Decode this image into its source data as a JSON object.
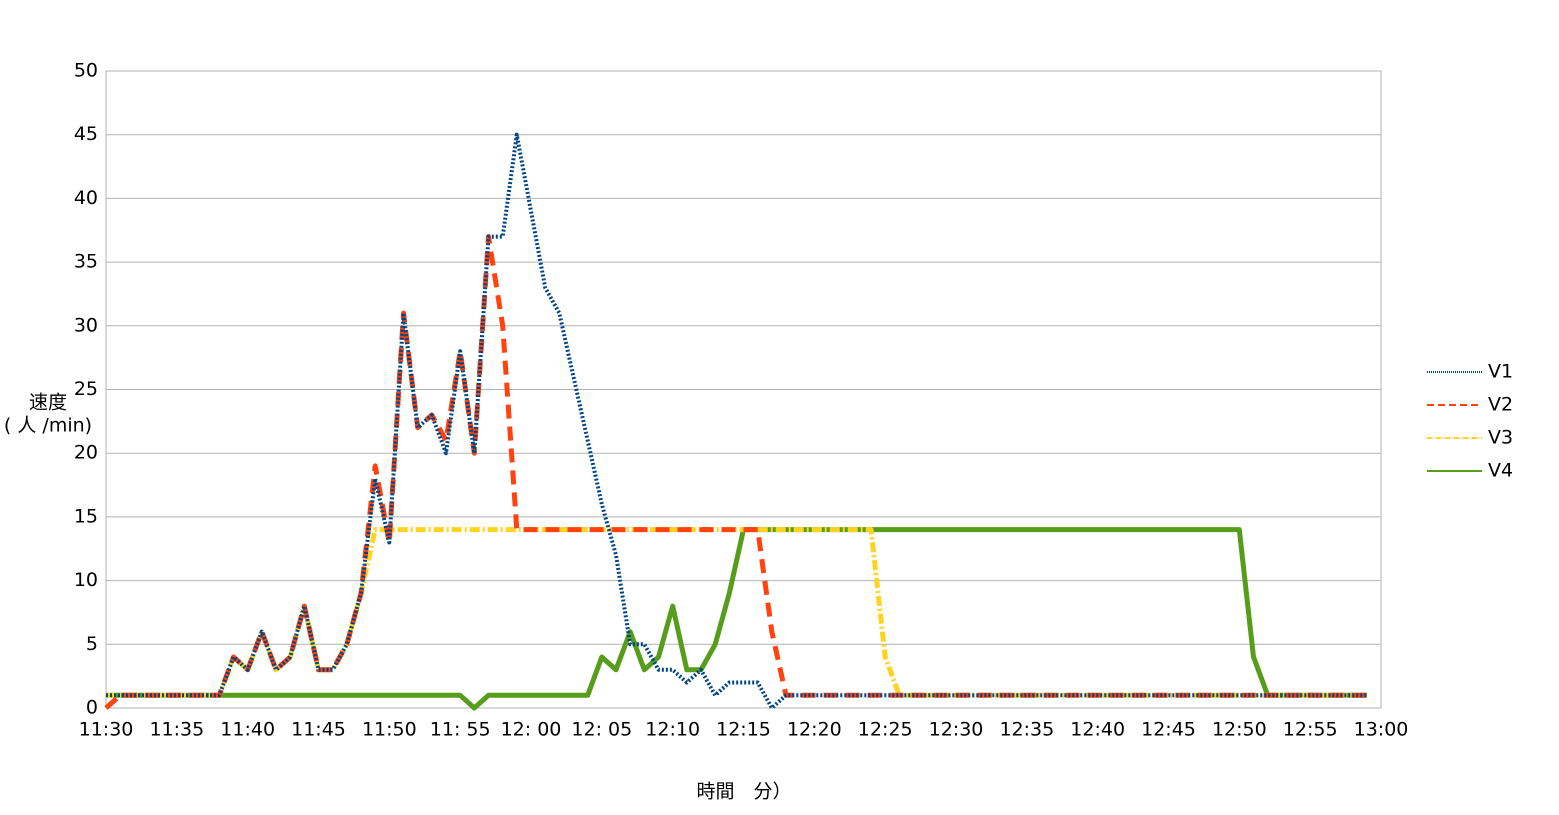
{
  "chart_data": {
    "type": "line",
    "ylabel": [
      "速度",
      "( 人 /min)"
    ],
    "xlabel": "時間　分）",
    "categories": [
      "11:30",
      null,
      null,
      null,
      null,
      "11:35",
      null,
      null,
      null,
      null,
      "11:40",
      null,
      null,
      null,
      null,
      "11:45",
      null,
      null,
      null,
      null,
      "11:50",
      null,
      null,
      null,
      null,
      "11: 55",
      null,
      null,
      null,
      null,
      "12: 00",
      null,
      null,
      null,
      null,
      "12: 05",
      null,
      null,
      null,
      null,
      "12:10",
      null,
      null,
      null,
      null,
      "12:15",
      null,
      null,
      null,
      null,
      "12:20",
      null,
      null,
      null,
      null,
      "12:25",
      null,
      null,
      null,
      null,
      "12:30",
      null,
      null,
      null,
      null,
      "12:35",
      null,
      null,
      null,
      null,
      "12:40",
      null,
      null,
      null,
      null,
      "12:45",
      null,
      null,
      null,
      null,
      "12:50",
      null,
      null,
      null,
      null,
      "12:55",
      null,
      null,
      null,
      null,
      "13:00"
    ],
    "series": [
      {
        "name": "V1",
        "color": "#004586",
        "dash": "2,2",
        "width": 4,
        "values": [
          1,
          1,
          1,
          1,
          1,
          1,
          1,
          1,
          1,
          4,
          3,
          6,
          3,
          4,
          8,
          3,
          3,
          5,
          9,
          18,
          13,
          31,
          22,
          23,
          20,
          28,
          20,
          37,
          37,
          45,
          39,
          33,
          31,
          26,
          21,
          16,
          12,
          5,
          5,
          3,
          3,
          2,
          3,
          1,
          2,
          2,
          2,
          0,
          1,
          1,
          1,
          1,
          1,
          1,
          1,
          1,
          1,
          1,
          1,
          1,
          1,
          1,
          1,
          1,
          1,
          1,
          1,
          1,
          1,
          1,
          1,
          1,
          1,
          1,
          1,
          1,
          1,
          1,
          1,
          1,
          1,
          1,
          1,
          1,
          1,
          1,
          1,
          1,
          1,
          1,
          null
        ]
      },
      {
        "name": "V2",
        "color": "#ff420e",
        "dash": "14,8",
        "width": 5,
        "values": [
          0,
          1,
          1,
          1,
          1,
          1,
          1,
          1,
          1,
          4,
          3,
          6,
          3,
          4,
          8,
          3,
          3,
          5,
          9,
          19,
          13,
          31,
          22,
          23,
          21,
          28,
          20,
          37,
          30,
          14,
          14,
          14,
          14,
          14,
          14,
          14,
          14,
          14,
          14,
          14,
          14,
          14,
          14,
          14,
          14,
          14,
          14,
          6,
          1,
          1,
          1,
          1,
          1,
          1,
          1,
          1,
          1,
          1,
          1,
          1,
          1,
          1,
          1,
          1,
          1,
          1,
          1,
          1,
          1,
          1,
          1,
          1,
          1,
          1,
          1,
          1,
          1,
          1,
          1,
          1,
          1,
          1,
          1,
          1,
          1,
          1,
          1,
          1,
          1,
          1,
          null
        ]
      },
      {
        "name": "V3",
        "color": "#ffd320",
        "dash": "10,3,2,3",
        "width": 5,
        "values": [
          1,
          1,
          1,
          1,
          1,
          1,
          1,
          1,
          1,
          4,
          3,
          6,
          3,
          4,
          8,
          3,
          3,
          5,
          9,
          14,
          14,
          14,
          14,
          14,
          14,
          14,
          14,
          14,
          14,
          14,
          14,
          14,
          14,
          14,
          14,
          14,
          14,
          14,
          14,
          14,
          14,
          14,
          14,
          14,
          14,
          14,
          14,
          14,
          14,
          14,
          14,
          14,
          14,
          14,
          14,
          4,
          1,
          1,
          1,
          1,
          1,
          1,
          1,
          1,
          1,
          1,
          1,
          1,
          1,
          1,
          1,
          1,
          1,
          1,
          1,
          1,
          1,
          1,
          1,
          1,
          1,
          1,
          1,
          1,
          1,
          1,
          1,
          1,
          1,
          1,
          null
        ]
      },
      {
        "name": "V4",
        "color": "#579d1c",
        "dash": "none",
        "width": 5,
        "values": [
          1,
          1,
          1,
          1,
          1,
          1,
          1,
          1,
          1,
          1,
          1,
          1,
          1,
          1,
          1,
          1,
          1,
          1,
          1,
          1,
          1,
          1,
          1,
          1,
          1,
          1,
          0,
          1,
          1,
          1,
          1,
          1,
          1,
          1,
          1,
          4,
          3,
          6,
          3,
          4,
          8,
          3,
          3,
          5,
          9,
          14,
          14,
          14,
          14,
          14,
          14,
          14,
          14,
          14,
          14,
          14,
          14,
          14,
          14,
          14,
          14,
          14,
          14,
          14,
          14,
          14,
          14,
          14,
          14,
          14,
          14,
          14,
          14,
          14,
          14,
          14,
          14,
          14,
          14,
          14,
          14,
          4,
          1,
          1,
          1,
          1,
          1,
          1,
          1,
          1,
          null
        ]
      }
    ],
    "ylim": [
      0,
      50
    ],
    "yticks": [
      0,
      5,
      10,
      15,
      20,
      25,
      30,
      35,
      40,
      45,
      50
    ],
    "grid": true,
    "legend": "right"
  }
}
